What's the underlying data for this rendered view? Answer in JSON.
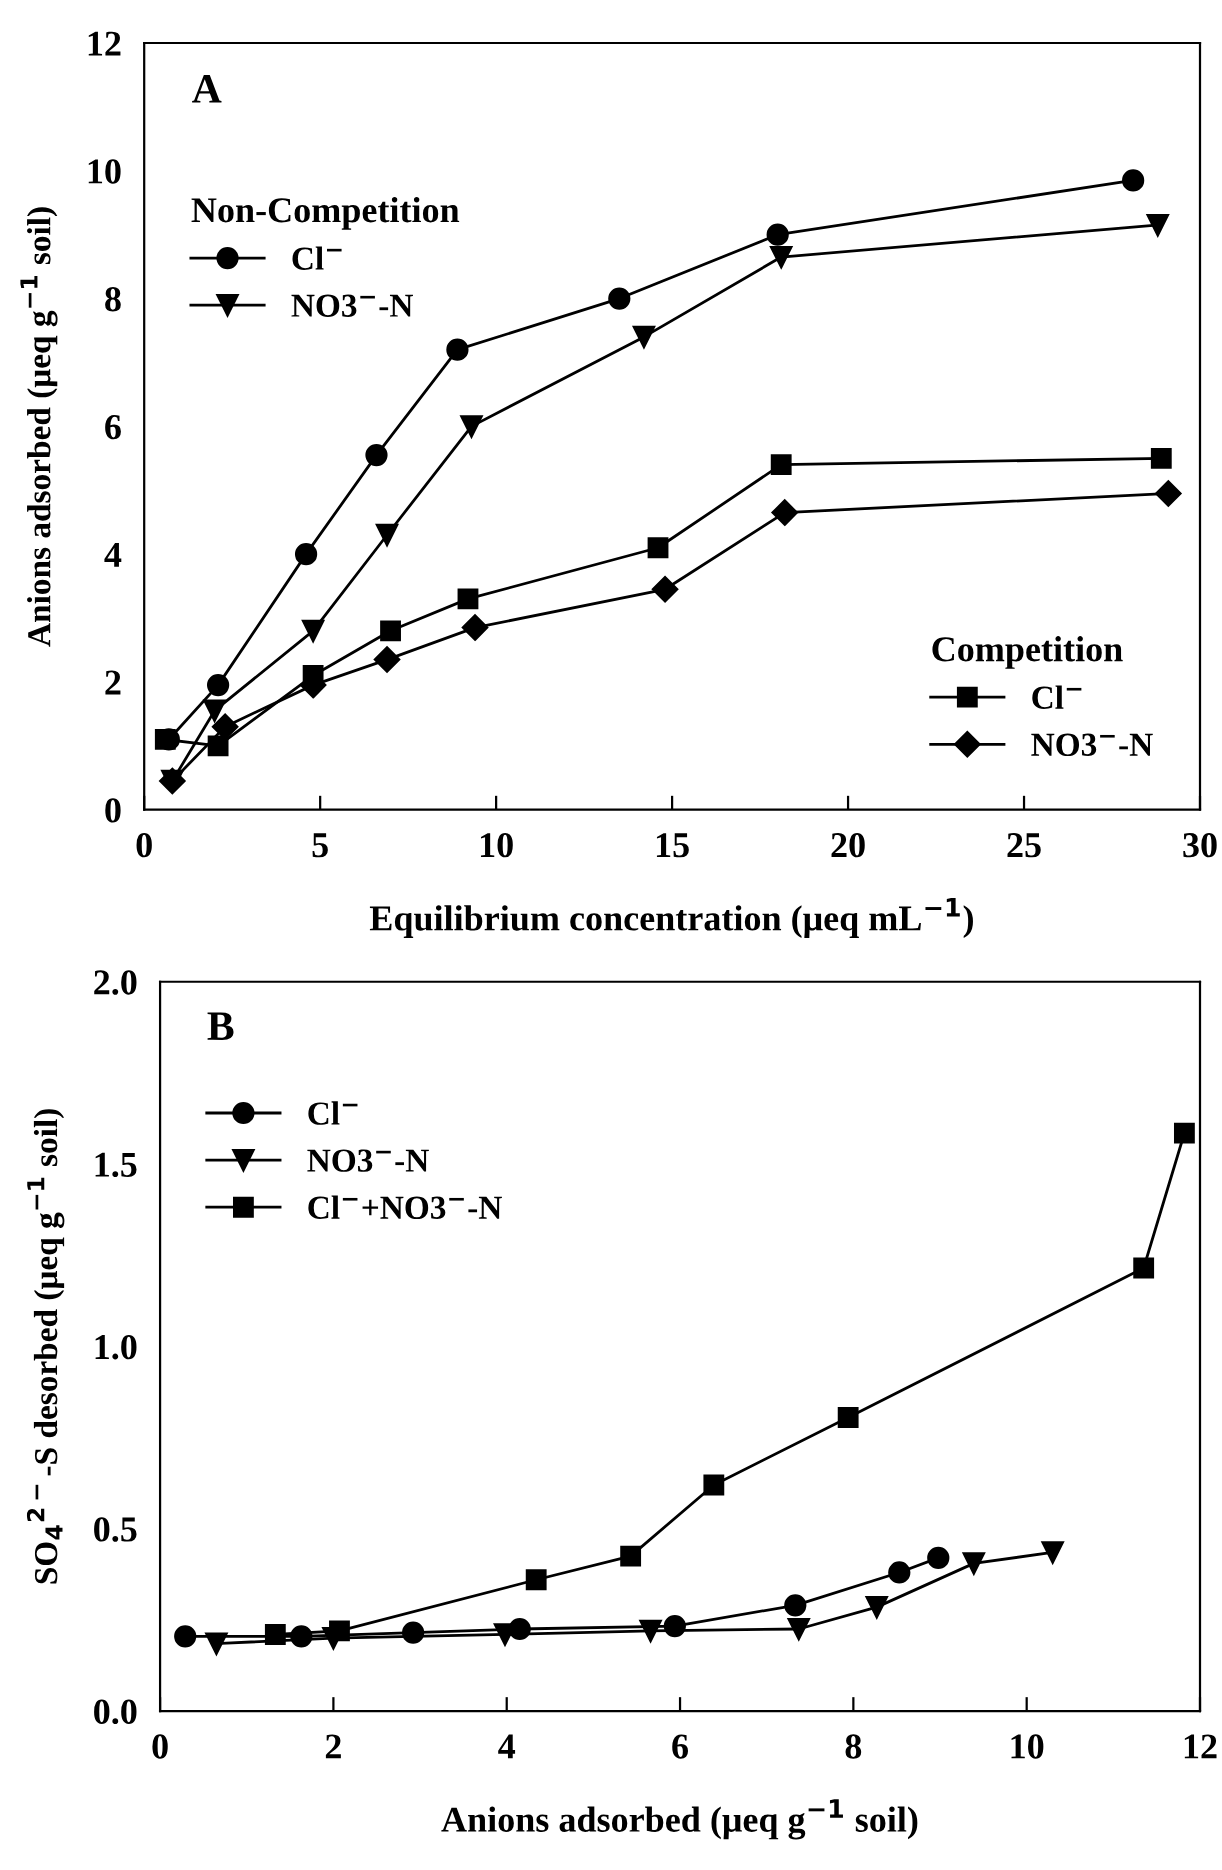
{
  "chart_data": [
    {
      "type": "line",
      "title": "A",
      "xlabel": "Equilibrium concentration (μeq mL$^{−1}$)",
      "ylabel": "Anions adsorbed (μeq g$^{−1}$ soil)",
      "xlim": [
        0,
        30
      ],
      "xticks": [
        0,
        5,
        10,
        15,
        20,
        25,
        30
      ],
      "ylim": [
        0,
        12
      ],
      "yticks": [
        0,
        2,
        4,
        6,
        8,
        10,
        12
      ],
      "grid": false,
      "legend": [
        "top left",
        "bottom right"
      ],
      "legend_title": [
        "Non-Competition",
        "Competition"
      ],
      "series": [
        {
          "name": "Cl$^{−}$",
          "color": "#000000",
          "marker": "circle",
          "x": [
            0.7,
            2.1,
            4.6,
            6.6,
            8.9,
            13.5,
            18.0,
            28.1
          ],
          "values": [
            1.1,
            1.95,
            4.0,
            5.55,
            7.2,
            8.0,
            9.0,
            9.85
          ]
        },
        {
          "name": "NO3$^{−}$-N",
          "color": "#000000",
          "marker": "triangle",
          "x": [
            0.8,
            2.0,
            4.8,
            6.9,
            9.3,
            14.2,
            18.1,
            28.8
          ],
          "values": [
            0.45,
            1.55,
            2.8,
            4.3,
            6.0,
            7.4,
            8.65,
            9.15
          ]
        },
        {
          "name": "Cl$^{−}$",
          "color": "#000000",
          "marker": "square",
          "x": [
            0.6,
            2.1,
            4.8,
            7.0,
            9.2,
            14.6,
            18.1,
            28.9
          ],
          "values": [
            1.1,
            1.0,
            2.1,
            2.8,
            3.3,
            4.1,
            5.4,
            5.5
          ]
        },
        {
          "name": "NO3$^{−}$-N",
          "color": "#000000",
          "marker": "diamond",
          "x": [
            0.8,
            2.3,
            4.8,
            6.9,
            9.4,
            14.8,
            18.2,
            29.1
          ],
          "values": [
            0.45,
            1.3,
            1.95,
            2.35,
            2.85,
            3.45,
            4.65,
            4.95
          ]
        }
      ]
    },
    {
      "type": "line",
      "title": "B",
      "xlabel": "Anions adsorbed (μeq g$^{−1}$ soil)",
      "ylabel": "SO$_{4}$$^{2−}$-S desorbed (μeq g$^{−1}$ soil)",
      "xlim": [
        0,
        12
      ],
      "xticks": [
        0,
        2,
        4,
        6,
        8,
        10,
        12
      ],
      "ylim": [
        0,
        2
      ],
      "yticks": [
        {
          "value": 0,
          "label": "0.0"
        },
        {
          "value": 0.5,
          "label": "0.5"
        },
        {
          "value": 1.0,
          "label": "1.0"
        },
        {
          "value": 1.5,
          "label": "1.5"
        },
        {
          "value": 2.0,
          "label": "2.0"
        }
      ],
      "grid": false,
      "legend": "top left",
      "series": [
        {
          "name": "Cl$^{−}$",
          "color": "#000000",
          "marker": "circle",
          "x": [
            0.29,
            1.63,
            2.92,
            4.15,
            5.94,
            7.33,
            8.53,
            8.98
          ],
          "values": [
            0.205,
            0.205,
            0.215,
            0.225,
            0.233,
            0.29,
            0.38,
            0.42
          ]
        },
        {
          "name": "NO3$^{−}$-N",
          "color": "#000000",
          "marker": "triangle",
          "x": [
            0.65,
            2.0,
            3.98,
            5.66,
            7.37,
            8.27,
            9.39,
            10.3
          ],
          "values": [
            0.185,
            0.2,
            0.21,
            0.22,
            0.225,
            0.285,
            0.405,
            0.435
          ]
        },
        {
          "name": "Cl$^{−}$+NO3$^{−}$-N",
          "color": "#000000",
          "marker": "square",
          "x": [
            1.33,
            2.07,
            4.34,
            5.43,
            6.39,
            7.94,
            11.35,
            11.82
          ],
          "values": [
            0.21,
            0.22,
            0.36,
            0.425,
            0.62,
            0.805,
            1.215,
            1.585
          ]
        }
      ]
    }
  ]
}
